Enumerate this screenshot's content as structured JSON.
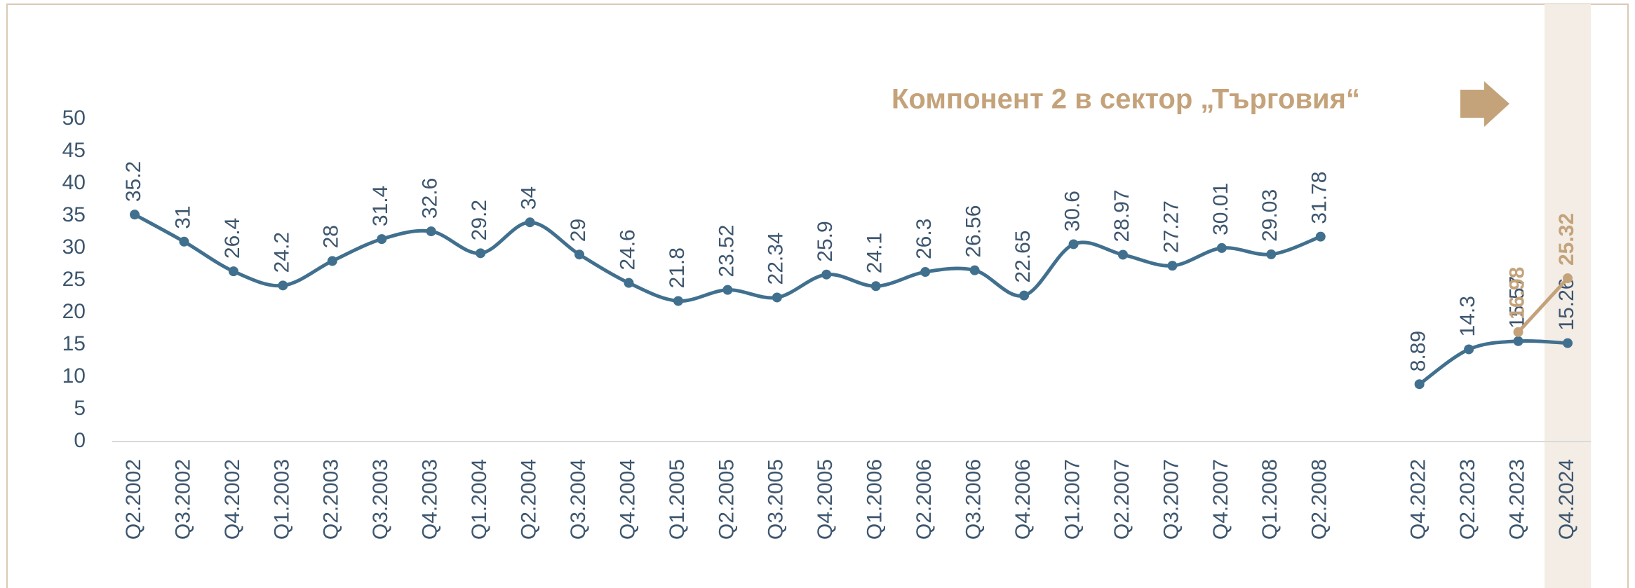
{
  "chart_data": {
    "type": "line",
    "title": "Компонент 2 в сектор „Търговия“",
    "categories": [
      "Q2.2002",
      "Q3.2002",
      "Q4.2002",
      "Q1.2003",
      "Q2.2003",
      "Q3.2003",
      "Q4.2003",
      "Q1.2004",
      "Q2.2004",
      "Q3.2004",
      "Q4.2004",
      "Q1.2005",
      "Q2.2005",
      "Q3.2005",
      "Q4.2005",
      "Q1.2006",
      "Q2.2006",
      "Q3.2006",
      "Q4.2006",
      "Q1.2007",
      "Q2.2007",
      "Q3.2007",
      "Q4.2007",
      "Q1.2008",
      "Q2.2008",
      null,
      "Q4.2022",
      "Q2.2023",
      "Q4.2023",
      "Q4.2024"
    ],
    "series": [
      {
        "name": null,
        "color": "#41708f",
        "values": [
          35.2,
          31,
          26.4,
          24.2,
          28,
          31.4,
          32.6,
          29.2,
          34,
          29,
          24.6,
          21.8,
          23.52,
          22.34,
          25.9,
          24.1,
          26.3,
          26.56,
          22.65,
          30.6,
          28.97,
          27.27,
          30.01,
          29.03,
          31.78,
          null,
          8.89,
          14.3,
          15.57,
          15.26
        ]
      },
      {
        "name": null,
        "color": "#c4a27a",
        "values": [
          null,
          null,
          null,
          null,
          null,
          null,
          null,
          null,
          null,
          null,
          null,
          null,
          null,
          null,
          null,
          null,
          null,
          null,
          null,
          null,
          null,
          null,
          null,
          null,
          null,
          null,
          null,
          null,
          16.98,
          25.32
        ]
      }
    ],
    "ylim": [
      0,
      50
    ],
    "yticks": [
      0,
      5,
      10,
      15,
      20,
      25,
      30,
      35,
      40,
      45,
      50
    ],
    "highlight_color": "#f3ede6"
  }
}
